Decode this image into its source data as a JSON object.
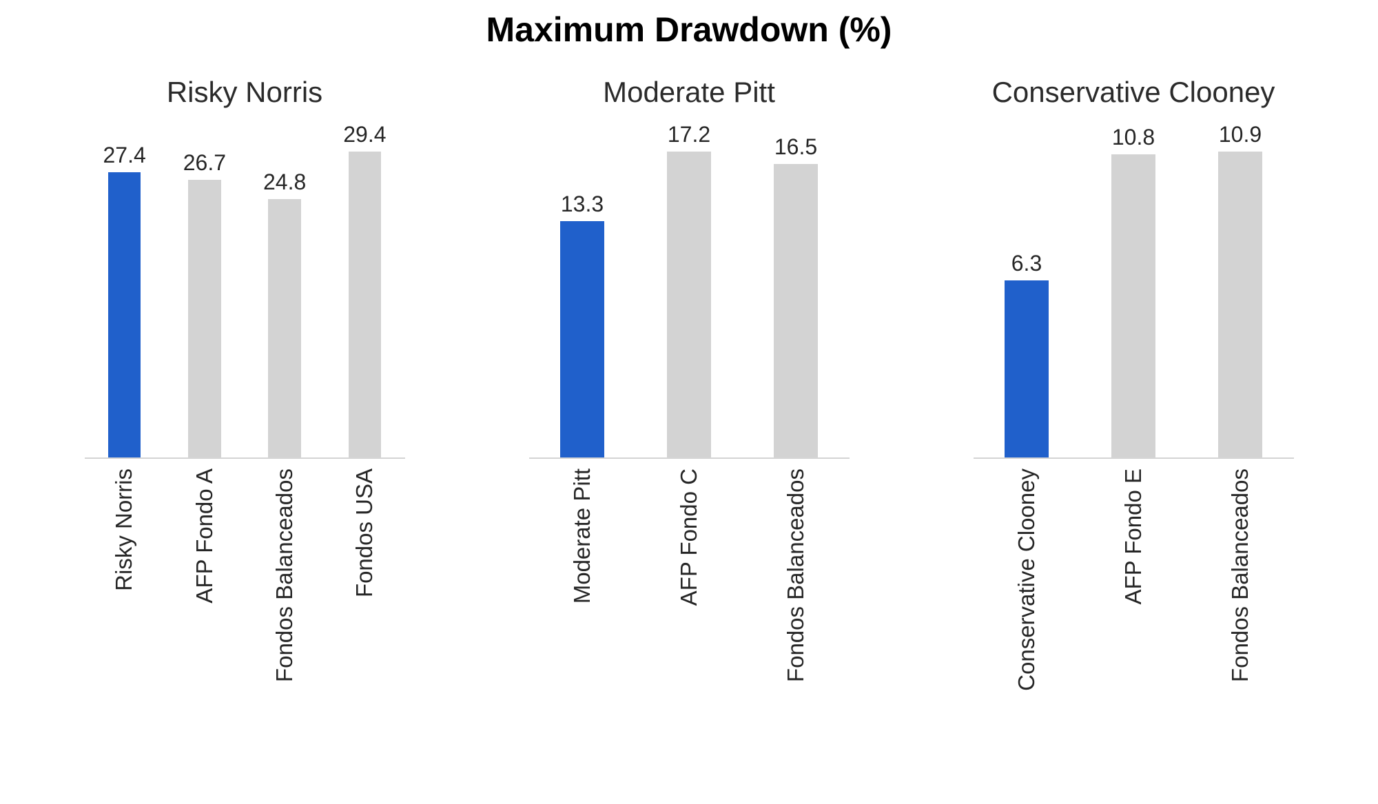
{
  "chart_data": {
    "type": "bar",
    "title": "Maximum Drawdown (%)",
    "layout": {
      "facets": 3,
      "grid": false,
      "y_axis_visible": false,
      "value_labels": true,
      "x_tick_rotation": 90,
      "legend": "none"
    },
    "colors": {
      "highlight_bar": "#2060CB",
      "default_bar": "#D3D3D3",
      "axis_line": "#D4D4D4",
      "label_text": "#262626",
      "title_text": "#000000"
    },
    "panels": [
      {
        "title": "Risky Norris",
        "categories": [
          "Risky Norris",
          "AFP Fondo A",
          "Fondos Balanceados",
          "Fondos USA"
        ],
        "values": [
          27.4,
          26.7,
          24.8,
          29.4
        ],
        "value_labels": [
          "27.4",
          "26.7",
          "24.8",
          "29.4"
        ],
        "highlight_index": 0,
        "ylim": [
          0,
          29.4
        ]
      },
      {
        "title": "Moderate Pitt",
        "categories": [
          "Moderate Pitt",
          "AFP Fondo C",
          "Fondos Balanceados"
        ],
        "values": [
          13.3,
          17.2,
          16.5
        ],
        "value_labels": [
          "13.3",
          "17.2",
          "16.5"
        ],
        "highlight_index": 0,
        "ylim": [
          0,
          17.2
        ]
      },
      {
        "title": "Conservative Clooney",
        "categories": [
          "Conservative Clooney",
          "AFP Fondo E",
          "Fondos Balanceados"
        ],
        "values": [
          6.3,
          10.8,
          10.9
        ],
        "value_labels": [
          "6.3",
          "10.8",
          "10.9"
        ],
        "highlight_index": 0,
        "ylim": [
          0,
          10.9
        ]
      }
    ]
  }
}
